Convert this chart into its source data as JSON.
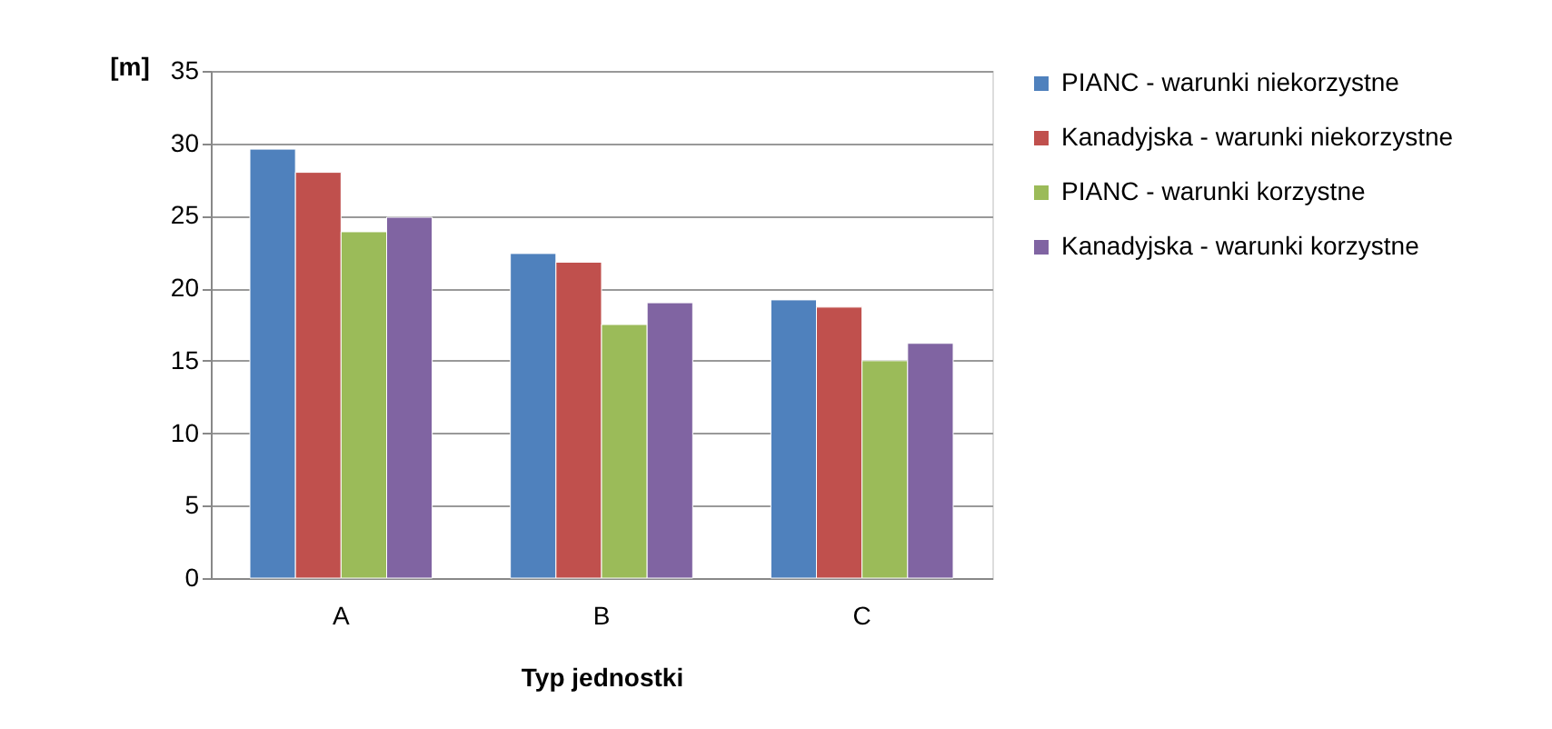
{
  "chart_data": {
    "type": "bar",
    "xlabel": "Typ jednostki",
    "ylabel": "[m]",
    "categories": [
      "A",
      "B",
      "C"
    ],
    "series": [
      {
        "name": "PIANC - warunki niekorzystne",
        "color": "#4f81bd",
        "values": [
          29.6,
          22.4,
          19.2
        ]
      },
      {
        "name": "Kanadyjska - warunki niekorzystne",
        "color": "#c0504d",
        "values": [
          28.0,
          21.8,
          18.7
        ]
      },
      {
        "name": "PIANC - warunki korzystne",
        "color": "#9bbb59",
        "values": [
          23.9,
          17.5,
          15.0
        ]
      },
      {
        "name": "Kanadyjska - warunki korzystne",
        "color": "#8064a2",
        "values": [
          24.9,
          19.0,
          16.2
        ]
      }
    ],
    "ylim": [
      0,
      35
    ],
    "yticks": [
      0,
      5,
      10,
      15,
      20,
      25,
      30,
      35
    ],
    "grid": "y",
    "legend": "right"
  }
}
